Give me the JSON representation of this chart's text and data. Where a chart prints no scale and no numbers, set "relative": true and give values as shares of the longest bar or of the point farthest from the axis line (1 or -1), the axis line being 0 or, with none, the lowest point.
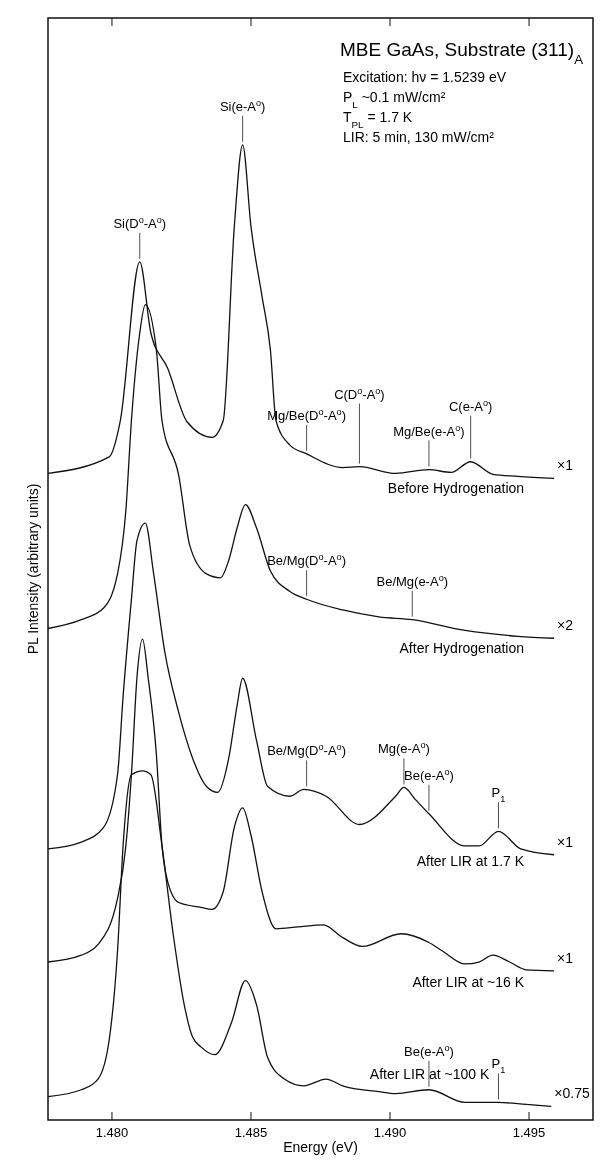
{
  "chart_data": {
    "type": "line",
    "relative": true,
    "title": "MBE GaAs, Substrate (311)$_{A}$",
    "xlabel": "Energy (eV)",
    "ylabel": "PL Intensity (arbitrary units)",
    "xlim": [
      1.4777,
      1.4973
    ],
    "xticks": [
      {
        "value": 1.48,
        "label": "1.480"
      },
      {
        "value": 1.485,
        "label": "1.485"
      },
      {
        "value": 1.49,
        "label": "1.490"
      },
      {
        "value": 1.495,
        "label": "1.495"
      }
    ],
    "series": [
      {
        "name": "Before Hydrogenation",
        "color": "#111111",
        "x": [
          1.4777,
          1.4799,
          1.4803,
          1.481,
          1.4814,
          1.482,
          1.4827,
          1.4836,
          1.484,
          1.4844,
          1.4847,
          1.485,
          1.4854,
          1.4857,
          1.4859,
          1.4864,
          1.487,
          1.4883,
          1.4889,
          1.4902,
          1.4914,
          1.4922,
          1.4929,
          1.4937,
          1.4946,
          1.4959
        ],
        "values": [
          0.663,
          0.68,
          0.717,
          0.88,
          0.807,
          0.771,
          0.716,
          0.7,
          0.717,
          0.916,
          1.0,
          0.916,
          0.844,
          0.789,
          0.717,
          0.692,
          0.683,
          0.669,
          0.67,
          0.663,
          0.667,
          0.664,
          0.675,
          0.662,
          0.66,
          0.658
        ]
      },
      {
        "name": "After Hydrogenation",
        "color": "#111111",
        "x": [
          1.4777,
          1.4789,
          1.4797,
          1.4802,
          1.4805,
          1.4807,
          1.481,
          1.4812,
          1.4816,
          1.4818,
          1.4824,
          1.4828,
          1.4834,
          1.4839,
          1.4842,
          1.4845,
          1.4848,
          1.4852,
          1.4857,
          1.4864,
          1.487,
          1.4883,
          1.4896,
          1.4908,
          1.4927,
          1.4946,
          1.4959
        ],
        "values": [
          0.504,
          0.513,
          0.525,
          0.56,
          0.625,
          0.717,
          0.807,
          0.836,
          0.789,
          0.717,
          0.661,
          0.589,
          0.56,
          0.556,
          0.574,
          0.607,
          0.631,
          0.607,
          0.563,
          0.542,
          0.534,
          0.523,
          0.516,
          0.513,
          0.502,
          0.496,
          0.494
        ]
      },
      {
        "name": "After LIR at 1.7 K",
        "color": "#111111",
        "x": [
          1.4777,
          1.4789,
          1.4797,
          1.4802,
          1.4804,
          1.4807,
          1.4809,
          1.4812,
          1.4815,
          1.4819,
          1.4824,
          1.4829,
          1.4834,
          1.4838,
          1.4842,
          1.4845,
          1.4847,
          1.4852,
          1.4856,
          1.4864,
          1.4869,
          1.4877,
          1.4889,
          1.4902,
          1.4905,
          1.4909,
          1.4914,
          1.4927,
          1.4932,
          1.4939,
          1.4947,
          1.4959
        ],
        "values": [
          0.278,
          0.285,
          0.3,
          0.354,
          0.434,
          0.534,
          0.594,
          0.612,
          0.56,
          0.48,
          0.418,
          0.371,
          0.342,
          0.336,
          0.371,
          0.425,
          0.453,
          0.389,
          0.342,
          0.332,
          0.339,
          0.332,
          0.303,
          0.332,
          0.341,
          0.329,
          0.314,
          0.281,
          0.281,
          0.296,
          0.278,
          0.272
        ]
      },
      {
        "name": "After LIR at ~16 K",
        "color": "#111111",
        "x": [
          1.4777,
          1.4789,
          1.4795,
          1.4802,
          1.4805,
          1.4807,
          1.4809,
          1.4811,
          1.4813,
          1.4816,
          1.4818,
          1.482,
          1.4824,
          1.4832,
          1.4836,
          1.484,
          1.4844,
          1.4847,
          1.485,
          1.4854,
          1.4859,
          1.4867,
          1.4876,
          1.4883,
          1.489,
          1.4904,
          1.4914,
          1.4919,
          1.4927,
          1.4932,
          1.4937,
          1.4943,
          1.4949,
          1.4959
        ],
        "values": [
          0.162,
          0.169,
          0.18,
          0.227,
          0.281,
          0.354,
          0.454,
          0.493,
          0.454,
          0.374,
          0.281,
          0.245,
          0.223,
          0.218,
          0.216,
          0.234,
          0.3,
          0.32,
          0.292,
          0.234,
          0.196,
          0.198,
          0.2,
          0.187,
          0.178,
          0.191,
          0.182,
          0.173,
          0.16,
          0.162,
          0.169,
          0.162,
          0.154,
          0.153
        ]
      },
      {
        "name": "After LIR at ~100 K",
        "color": "#111111",
        "x": [
          1.4777,
          1.4789,
          1.4795,
          1.4799,
          1.4802,
          1.4804,
          1.4807,
          1.4811,
          1.4814,
          1.4818,
          1.4822,
          1.4826,
          1.4829,
          1.4832,
          1.4837,
          1.4843,
          1.4848,
          1.4852,
          1.4856,
          1.4862,
          1.4869,
          1.4877,
          1.4883,
          1.4896,
          1.4902,
          1.4914,
          1.4927,
          1.4939,
          1.4949,
          1.4958
        ],
        "values": [
          0.024,
          0.031,
          0.042,
          0.082,
          0.173,
          0.281,
          0.354,
          0.358,
          0.354,
          0.281,
          0.191,
          0.118,
          0.085,
          0.075,
          0.067,
          0.1,
          0.143,
          0.118,
          0.064,
          0.042,
          0.035,
          0.042,
          0.035,
          0.029,
          0.027,
          0.031,
          0.018,
          0.018,
          0.016,
          0.014
        ]
      }
    ],
    "annotations": [
      "Excitation:  hν = 1.5239 eV",
      "P$_{L}$ ~0.1 mW/cm²",
      "T$_{PL}$ = 1.7 K",
      "LIR:  5 min, 130 mW/cm²",
      {
        "text": "Si(D$^{o}$-A$^{o}$)",
        "x": 1.481,
        "y": 0.88
      },
      {
        "text": "Si(e-A$^{o}$)",
        "x": 1.4847,
        "y": 1.0
      },
      {
        "text": "Mg/Be(D$^{o}$-A$^{o}$)",
        "x": 1.487,
        "y": 0.683
      },
      {
        "text": "C(D$^{o}$-A$^{o}$)",
        "x": 1.4889,
        "y": 0.67
      },
      {
        "text": "Mg/Be(e-A$^{o}$)",
        "x": 1.4914,
        "y": 0.667
      },
      {
        "text": "C(e-A$^{o}$)",
        "x": 1.4929,
        "y": 0.675
      },
      {
        "text": "Be/Mg(D$^{o}$-A$^{o}$)",
        "x": 1.487,
        "y": 0.534
      },
      {
        "text": "Be/Mg(e-A$^{o}$)",
        "x": 1.4908,
        "y": 0.513
      },
      {
        "text": "Be/Mg(D$^{o}$-A$^{o}$)",
        "x": 1.487,
        "y": 0.339
      },
      {
        "text": "Mg(e-A$^{o}$)",
        "x": 1.4905,
        "y": 0.341
      },
      {
        "text": "Be(e-A$^{o}$)",
        "x": 1.4914,
        "y": 0.314
      },
      {
        "text": "P$_{1}$",
        "x": 1.4939,
        "y": 0.296
      },
      {
        "text": "Be(e-A$^{o}$)",
        "x": 1.4914,
        "y": 0.031
      },
      {
        "text": "P$_{1}$",
        "x": 1.4939,
        "y": 0.018
      },
      {
        "text": "×1",
        "x": 1.4959,
        "y": 0.658
      },
      {
        "text": "×2",
        "x": 1.4959,
        "y": 0.494
      },
      {
        "text": "×1",
        "x": 1.4959,
        "y": 0.272
      },
      {
        "text": "×1",
        "x": 1.4959,
        "y": 0.153
      },
      {
        "text": "×0.75",
        "x": 1.4958,
        "y": 0.014
      }
    ]
  }
}
